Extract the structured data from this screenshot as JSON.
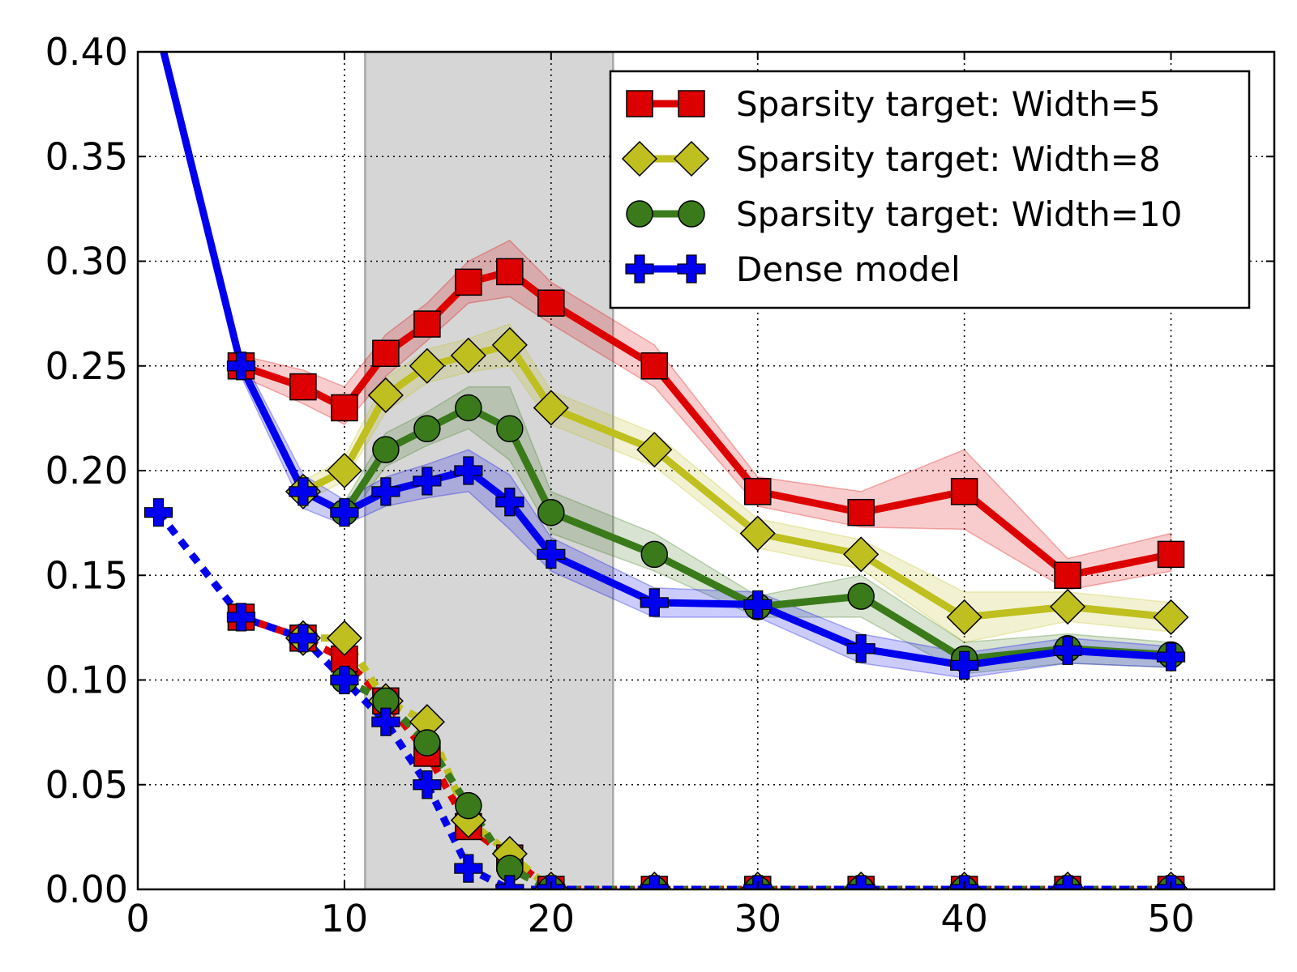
{
  "chart_data": {
    "type": "line",
    "title": "",
    "xlabel": "",
    "ylabel": "",
    "xlim": [
      0,
      55
    ],
    "ylim": [
      0,
      0.4
    ],
    "xticks": [
      0,
      10,
      20,
      30,
      40,
      50
    ],
    "yticks": [
      0.0,
      0.05,
      0.1,
      0.15,
      0.2,
      0.25,
      0.3,
      0.35,
      0.4
    ],
    "xtick_labels": [
      "0",
      "10",
      "20",
      "30",
      "40",
      "50"
    ],
    "ytick_labels": [
      "0.00",
      "0.05",
      "0.10",
      "0.15",
      "0.20",
      "0.25",
      "0.30",
      "0.35",
      "0.40"
    ],
    "grid": true,
    "legend_position": "top-right",
    "shaded_region": {
      "x_start": 11,
      "x_end": 23,
      "color": "#d6d6d6"
    },
    "series": [
      {
        "name": "Sparsity target: Width=5",
        "color": "#dd0000",
        "marker": "square",
        "solid": {
          "x": [
            5,
            8,
            10,
            12,
            14,
            16,
            18,
            20,
            25,
            30,
            35,
            40,
            45,
            50
          ],
          "y": [
            0.25,
            0.24,
            0.23,
            0.256,
            0.27,
            0.29,
            0.295,
            0.28,
            0.25,
            0.19,
            0.18,
            0.19,
            0.15,
            0.16
          ],
          "band_low": [
            0.245,
            0.232,
            0.222,
            0.245,
            0.262,
            0.28,
            0.283,
            0.27,
            0.24,
            0.183,
            0.173,
            0.172,
            0.143,
            0.152
          ],
          "band_high": [
            0.255,
            0.248,
            0.24,
            0.265,
            0.28,
            0.3,
            0.31,
            0.29,
            0.26,
            0.197,
            0.19,
            0.21,
            0.158,
            0.17
          ]
        },
        "dashed": {
          "x": [
            5,
            8,
            10,
            12,
            14,
            16,
            18,
            20,
            25,
            30,
            35,
            40,
            45,
            50
          ],
          "y": [
            0.13,
            0.12,
            0.11,
            0.09,
            0.065,
            0.03,
            0.015,
            0.0,
            0.0,
            0.0,
            0.0,
            0.0,
            0.0,
            0.0
          ]
        }
      },
      {
        "name": "Sparsity target: Width=8",
        "color": "#bfbf20",
        "marker": "diamond",
        "solid": {
          "x": [
            8,
            10,
            12,
            14,
            16,
            18,
            20,
            25,
            30,
            35,
            40,
            45,
            50
          ],
          "y": [
            0.19,
            0.2,
            0.236,
            0.25,
            0.255,
            0.26,
            0.23,
            0.21,
            0.17,
            0.16,
            0.13,
            0.135,
            0.13
          ],
          "band_low": [
            0.185,
            0.195,
            0.228,
            0.242,
            0.247,
            0.25,
            0.222,
            0.202,
            0.163,
            0.153,
            0.118,
            0.128,
            0.123
          ],
          "band_high": [
            0.195,
            0.206,
            0.244,
            0.258,
            0.263,
            0.27,
            0.238,
            0.218,
            0.177,
            0.167,
            0.142,
            0.142,
            0.137
          ]
        },
        "dashed": {
          "x": [
            8,
            10,
            12,
            14,
            16,
            18,
            20,
            25,
            30,
            35,
            40,
            45,
            50
          ],
          "y": [
            0.12,
            0.12,
            0.09,
            0.08,
            0.033,
            0.017,
            0.0,
            0.0,
            0.0,
            0.0,
            0.0,
            0.0,
            0.0
          ]
        }
      },
      {
        "name": "Sparsity target: Width=10",
        "color": "#3a7a1a",
        "marker": "circle",
        "solid": {
          "x": [
            10,
            12,
            14,
            16,
            18,
            20,
            25,
            30,
            35,
            40,
            45,
            50
          ],
          "y": [
            0.18,
            0.21,
            0.22,
            0.23,
            0.22,
            0.18,
            0.16,
            0.135,
            0.14,
            0.11,
            0.115,
            0.112
          ],
          "band_low": [
            0.175,
            0.202,
            0.212,
            0.22,
            0.205,
            0.17,
            0.152,
            0.13,
            0.13,
            0.103,
            0.108,
            0.106
          ],
          "band_high": [
            0.185,
            0.218,
            0.228,
            0.24,
            0.24,
            0.19,
            0.17,
            0.14,
            0.15,
            0.118,
            0.122,
            0.118
          ]
        },
        "dashed": {
          "x": [
            10,
            12,
            14,
            16,
            18,
            20,
            25,
            30,
            35,
            40,
            45,
            50
          ],
          "y": [
            0.1,
            0.09,
            0.07,
            0.04,
            0.01,
            0.0,
            0.0,
            0.0,
            0.0,
            0.0,
            0.0,
            0.0
          ]
        }
      },
      {
        "name": "Dense model",
        "color": "#0000ee",
        "marker": "plus",
        "solid": {
          "x": [
            1,
            5,
            8,
            10,
            12,
            14,
            16,
            18,
            20,
            25,
            30,
            35,
            40,
            45,
            50
          ],
          "y": [
            0.41,
            0.25,
            0.19,
            0.18,
            0.19,
            0.195,
            0.2,
            0.185,
            0.16,
            0.137,
            0.136,
            0.115,
            0.107,
            0.114,
            0.111
          ],
          "band_low": [
            0.405,
            0.245,
            0.182,
            0.174,
            0.183,
            0.187,
            0.19,
            0.172,
            0.152,
            0.13,
            0.13,
            0.108,
            0.101,
            0.108,
            0.106
          ],
          "band_high": [
            0.415,
            0.255,
            0.198,
            0.186,
            0.197,
            0.203,
            0.21,
            0.198,
            0.168,
            0.144,
            0.142,
            0.122,
            0.113,
            0.12,
            0.116
          ]
        },
        "dashed": {
          "x": [
            1,
            5,
            8,
            10,
            12,
            14,
            16,
            18,
            20,
            25,
            30,
            35,
            40,
            45,
            50
          ],
          "y": [
            0.18,
            0.13,
            0.12,
            0.1,
            0.08,
            0.05,
            0.01,
            0.0,
            0.0,
            0.0,
            0.0,
            0.0,
            0.0,
            0.0,
            0.0
          ]
        }
      }
    ]
  }
}
